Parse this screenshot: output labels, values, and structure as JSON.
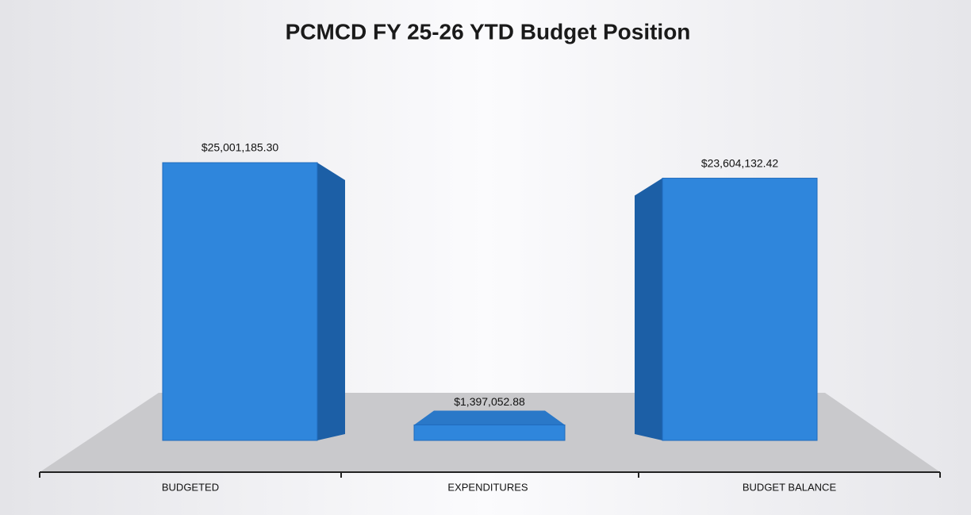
{
  "chart_data": {
    "type": "bar3d",
    "title": "PCMCD FY 25-26 YTD Budget Position",
    "categories": [
      "BUDGETED",
      "EXPENDITURES",
      "BUDGET BALANCE"
    ],
    "values": [
      25001185.3,
      1397052.88,
      23604132.42
    ],
    "value_labels": [
      "$25,001,185.30",
      "$1,397,052.88",
      "$23,604,132.42"
    ],
    "color": "#2f86dc"
  }
}
